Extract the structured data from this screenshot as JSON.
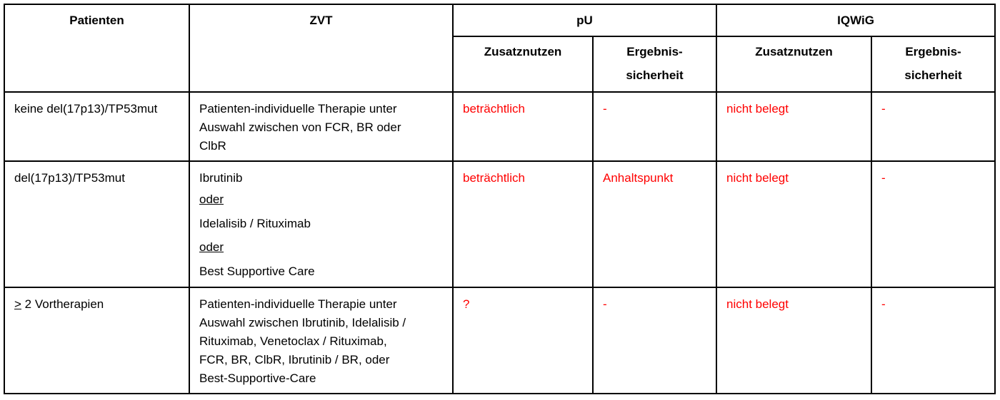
{
  "header": {
    "patients": "Patienten",
    "zvt": "ZVT",
    "pu": "pU",
    "iqwig": "IQWiG",
    "zusatznutzen": "Zusatznutzen",
    "ergebnis": "Ergebnis-",
    "sicherheit": "sicherheit"
  },
  "rows": [
    {
      "patients": "keine del(17p13)/TP53mut",
      "zvt": [
        "Patienten-individuelle Therapie unter",
        "Auswahl zwischen von FCR, BR oder",
        "ClbR"
      ],
      "pu_zusatznutzen": "beträchtlich",
      "pu_ergebnis": "-",
      "iqwig_zusatznutzen": "nicht belegt",
      "iqwig_ergebnis": "-"
    },
    {
      "patients": "del(17p13)/TP53mut",
      "zvt": [
        "Ibrutinib",
        "oder",
        "Idelalisib / Rituximab",
        "oder",
        "Best Supportive Care"
      ],
      "pu_zusatznutzen": "beträchtlich",
      "pu_ergebnis": "Anhaltspunkt",
      "iqwig_zusatznutzen": "nicht belegt",
      "iqwig_ergebnis": "-"
    },
    {
      "patients_symbol": ">",
      "patients": " 2 Vortherapien",
      "zvt": [
        "Patienten-individuelle Therapie unter",
        "Auswahl zwischen Ibrutinib, Idelalisib /",
        "Rituximab, Venetoclax / Rituximab,",
        "FCR, BR, ClbR, Ibrutinib / BR, oder",
        "Best-Supportive-Care"
      ],
      "pu_zusatznutzen": "?",
      "pu_ergebnis": "-",
      "iqwig_zusatznutzen": "nicht belegt",
      "iqwig_ergebnis": "-"
    }
  ],
  "colors": {
    "highlight": "#ff0000"
  }
}
